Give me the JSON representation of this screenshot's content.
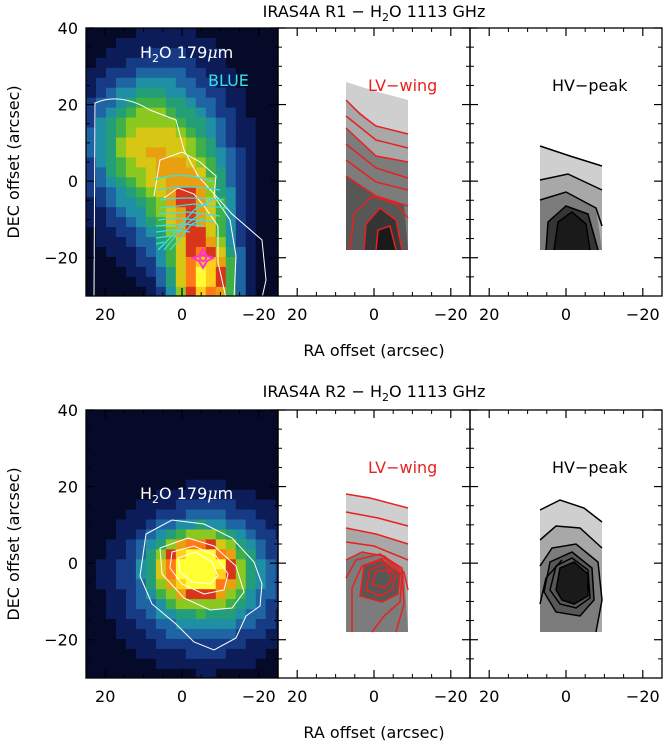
{
  "figure": {
    "xlabel": "RA offset (arcsec)",
    "ylabel": "DEC offset (arcsec)",
    "x_ticks": [
      20,
      0,
      -20
    ],
    "y_ticks": [
      40,
      20,
      0,
      -20
    ],
    "x_tick_labels": [
      "20",
      "0",
      "−20"
    ],
    "y_tick_labels": [
      "40",
      "20",
      "0",
      "−20"
    ],
    "xlim": [
      25,
      -25
    ],
    "ylim": [
      -30,
      40
    ]
  },
  "rows": [
    {
      "title_parts": [
        "IRAS4A R1 − H",
        "2",
        "O 1113 GHz"
      ],
      "map_label_parts": [
        "H",
        "2",
        "O 179",
        "μ",
        "m"
      ],
      "map_sublabel": "BLUE",
      "panel_labels": [
        "LV−wing",
        "HV−peak"
      ]
    },
    {
      "title_parts": [
        "IRAS4A R2 − H",
        "2",
        "O 1113 GHz"
      ],
      "map_label_parts": [
        "H",
        "2",
        "O 179",
        "μ",
        "m"
      ],
      "map_sublabel": "",
      "panel_labels": [
        "LV−wing",
        "HV−peak"
      ]
    }
  ],
  "colors": {
    "lv_contour": "#e8211e",
    "hv_contour": "#000000",
    "label_red": "#e8211e",
    "blue_label": "#38e0ea",
    "cyan_contour": "#38e0ea",
    "source_marker": "#ff33cc",
    "map_contour": "#ffffff",
    "text": "#000000",
    "gray_levels": [
      "#cfcfcf",
      "#a8a8a8",
      "#7c7c7c",
      "#575757",
      "#353535",
      "#1a1a1a"
    ],
    "colormap": [
      "#050a28",
      "#0c1c58",
      "#173a84",
      "#1f64a3",
      "#1f8fa6",
      "#239e78",
      "#3fb048",
      "#8bc820",
      "#d8c614",
      "#e8a010",
      "#d8351c",
      "#ff7a16",
      "#ffcf1a",
      "#ffff33"
    ]
  },
  "chart_data": [
    {
      "type": "heatmap",
      "title": "IRAS4A R1 − H2O 1113 GHz",
      "panel": "H2O 179μm map, BLUE outflow",
      "xlabel": "RA offset (arcsec)",
      "ylabel": "DEC offset (arcsec)",
      "xlim": [
        25,
        -25
      ],
      "ylim": [
        -30,
        40
      ],
      "intensity_peak_offset_arcsec": [
        -5,
        -25
      ],
      "source_position_arcsec": [
        -5,
        -21
      ],
      "footprint_of_spectral_map": {
        "ra_range": [
          6,
          -8
        ],
        "dec_range": [
          -18,
          25
        ]
      },
      "lv_wing_contours": 9,
      "hv_peak_contours": 4,
      "lv_wing_peak_arcsec": [
        -2,
        -16
      ],
      "hv_peak_peak_arcsec": [
        -1,
        -14
      ]
    },
    {
      "type": "heatmap",
      "title": "IRAS4A R2 − H2O 1113 GHz",
      "panel": "H2O 179μm map",
      "xlabel": "RA offset (arcsec)",
      "ylabel": "DEC offset (arcsec)",
      "xlim": [
        25,
        -25
      ],
      "ylim": [
        -30,
        40
      ],
      "intensity_peak_offset_arcsec": [
        -4,
        -2
      ],
      "footprint_of_spectral_map": {
        "ra_range": [
          6,
          -8
        ],
        "dec_range": [
          -18,
          18
        ]
      },
      "lv_wing_contours": 10,
      "hv_peak_contours": 7,
      "lv_wing_peak_arcsec": [
        0,
        -3
      ],
      "hv_peak_peak_arcsec": [
        -1,
        -4
      ]
    }
  ]
}
